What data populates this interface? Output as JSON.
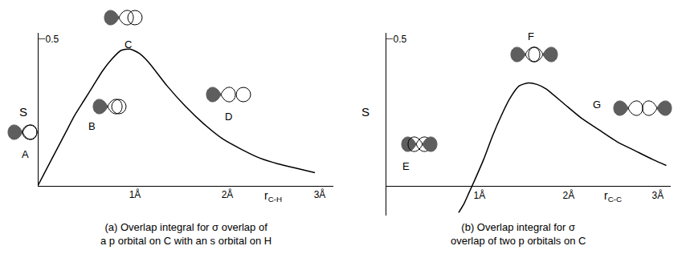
{
  "chart_data": [
    {
      "type": "line",
      "caption": "(a) Overlap integral for σ overlap of a p orbital on C with an s orbital on H",
      "ylabel": "S",
      "xlabel": {
        "text": "r",
        "subscript": "C-H"
      },
      "x": [
        0,
        0.1,
        0.2,
        0.3,
        0.4,
        0.5,
        0.6,
        0.7,
        0.8,
        0.9,
        1.0,
        1.1,
        1.2,
        1.4,
        1.6,
        1.8,
        2.0,
        2.2,
        2.4,
        2.6,
        2.8,
        3.0
      ],
      "values": [
        0,
        0.06,
        0.12,
        0.18,
        0.24,
        0.29,
        0.34,
        0.39,
        0.43,
        0.46,
        0.465,
        0.45,
        0.42,
        0.34,
        0.27,
        0.21,
        0.16,
        0.125,
        0.095,
        0.075,
        0.06,
        0.045
      ],
      "color": "#000000",
      "xlim": [
        0,
        3.2
      ],
      "xticks": [
        {
          "value": 1,
          "label": "1Å"
        },
        {
          "value": 2,
          "label": "2Å"
        },
        {
          "value": 3,
          "label": "3Å"
        }
      ],
      "ylim": [
        0,
        0.52
      ],
      "yticks": [
        0.5
      ],
      "grid": false,
      "annotations": [
        "A",
        "B",
        "C",
        "D"
      ]
    },
    {
      "type": "line",
      "caption": "(b) Overlap integral for σ overlap of two p orbitals on C",
      "ylabel": "S",
      "xlabel": {
        "text": "r",
        "subscript": "C-C"
      },
      "x": [
        0.82,
        0.88,
        0.94,
        1.0,
        1.1,
        1.2,
        1.3,
        1.4,
        1.5,
        1.6,
        1.7,
        1.8,
        2.0,
        2.2,
        2.4,
        2.6,
        2.8,
        3.0,
        3.15
      ],
      "values": [
        -0.09,
        -0.06,
        -0.02,
        0.02,
        0.09,
        0.17,
        0.24,
        0.3,
        0.34,
        0.35,
        0.345,
        0.33,
        0.28,
        0.23,
        0.19,
        0.15,
        0.12,
        0.09,
        0.07
      ],
      "color": "#000000",
      "xlim": [
        0,
        3.2
      ],
      "xticks": [
        {
          "value": 1,
          "label": "1Å"
        },
        {
          "value": 2,
          "label": "2Å"
        },
        {
          "value": 3,
          "label": "3Å"
        }
      ],
      "ylim": [
        -0.1,
        0.52
      ],
      "yticks": [
        0.5
      ],
      "grid": false,
      "annotations": [
        "E",
        "F",
        "G"
      ]
    }
  ]
}
